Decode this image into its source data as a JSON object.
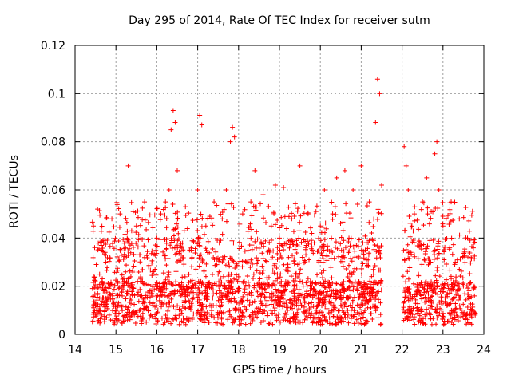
{
  "chart_data": {
    "type": "scatter",
    "title": "Day 295 of 2014, Rate Of TEC Index for receiver sutm",
    "xlabel": "GPS time / hours",
    "ylabel": "ROTI / TECUs",
    "xlim": [
      14,
      24
    ],
    "ylim": [
      0,
      0.12
    ],
    "x_ticks": [
      "14",
      "15",
      "16",
      "17",
      "18",
      "19",
      "20",
      "21",
      "22",
      "23",
      "24"
    ],
    "y_ticks": [
      "0",
      "0.02",
      "0.04",
      "0.06",
      "0.08",
      "0.1",
      "0.12"
    ],
    "grid": true,
    "marker": "+",
    "color": "#ff0000",
    "series": [
      {
        "x": [
          14.45,
          14.5,
          14.55,
          14.6,
          14.65,
          14.7,
          14.75,
          14.8,
          14.9,
          15.0,
          15.1,
          15.2,
          15.3,
          15.4,
          15.5,
          15.6,
          15.7,
          15.8,
          15.9,
          16.0,
          16.1,
          16.2,
          16.3,
          16.35,
          16.4,
          16.45,
          16.5,
          16.6,
          16.7,
          16.8,
          16.9,
          17.0,
          17.05,
          17.1,
          17.2,
          17.3,
          17.4,
          17.5,
          17.6,
          17.7,
          17.8,
          17.85,
          17.9,
          18.0,
          18.1,
          18.2,
          18.3,
          18.4,
          18.5,
          18.6,
          18.7,
          18.8,
          18.9,
          19.0,
          19.1,
          19.2,
          19.3,
          19.4,
          19.5,
          19.6,
          19.7,
          19.8,
          19.9,
          20.0,
          20.1,
          20.2,
          20.3,
          20.4,
          20.5,
          20.6,
          20.7,
          20.8,
          20.9,
          21.0,
          21.1,
          21.2,
          21.3,
          21.35,
          21.4,
          21.45,
          21.5,
          22.05,
          22.1,
          22.15,
          22.2,
          22.3,
          22.4,
          22.5,
          22.6,
          22.7,
          22.8,
          22.85,
          22.9,
          23.0,
          23.1,
          23.2,
          23.3,
          23.4,
          23.5,
          23.6,
          23.7,
          23.75
        ],
        "y": [
          0.045,
          0.012,
          0.052,
          0.025,
          0.008,
          0.038,
          0.03,
          0.015,
          0.048,
          0.01,
          0.05,
          0.022,
          0.07,
          0.009,
          0.045,
          0.016,
          0.055,
          0.028,
          0.012,
          0.04,
          0.05,
          0.02,
          0.06,
          0.085,
          0.093,
          0.088,
          0.068,
          0.01,
          0.053,
          0.035,
          0.02,
          0.06,
          0.091,
          0.087,
          0.045,
          0.012,
          0.055,
          0.025,
          0.048,
          0.06,
          0.08,
          0.086,
          0.082,
          0.01,
          0.05,
          0.03,
          0.055,
          0.068,
          0.02,
          0.058,
          0.012,
          0.045,
          0.062,
          0.04,
          0.061,
          0.01,
          0.048,
          0.025,
          0.07,
          0.015,
          0.05,
          0.035,
          0.01,
          0.045,
          0.06,
          0.02,
          0.05,
          0.065,
          0.012,
          0.068,
          0.04,
          0.06,
          0.02,
          0.07,
          0.035,
          0.055,
          0.025,
          0.088,
          0.106,
          0.1,
          0.062,
          0.078,
          0.07,
          0.06,
          0.01,
          0.05,
          0.025,
          0.055,
          0.065,
          0.03,
          0.075,
          0.08,
          0.06,
          0.045,
          0.012,
          0.055,
          0.03,
          0.048,
          0.02,
          0.04,
          0.01,
          0.038
        ]
      }
    ]
  }
}
